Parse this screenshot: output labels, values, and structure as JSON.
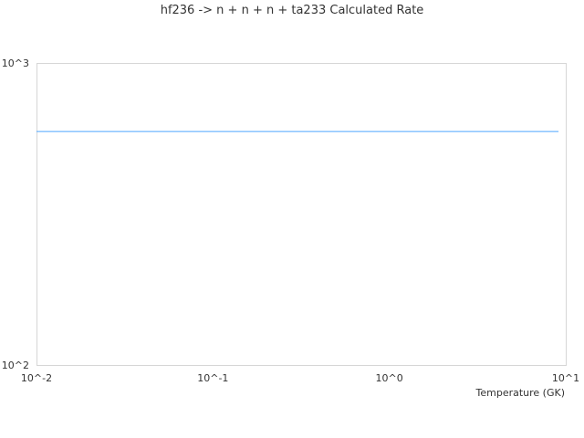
{
  "chart_data": {
    "type": "line",
    "title": "hf236 -> n + n + n + ta233 Calculated Rate",
    "xlabel": "Temperature (GK)",
    "ylabel": "",
    "xscale": "log",
    "yscale": "log",
    "xlim": [
      0.01,
      10
    ],
    "ylim": [
      100,
      1000
    ],
    "xticks": [
      "10^-2",
      "10^-1",
      "10^0",
      "10^1"
    ],
    "yticks": [
      "10^2",
      "10^3"
    ],
    "grid": false,
    "series": [
      {
        "color": "#4da6ff",
        "x": [
          0.01,
          9.1
        ],
        "y": [
          593,
          593
        ]
      }
    ]
  }
}
